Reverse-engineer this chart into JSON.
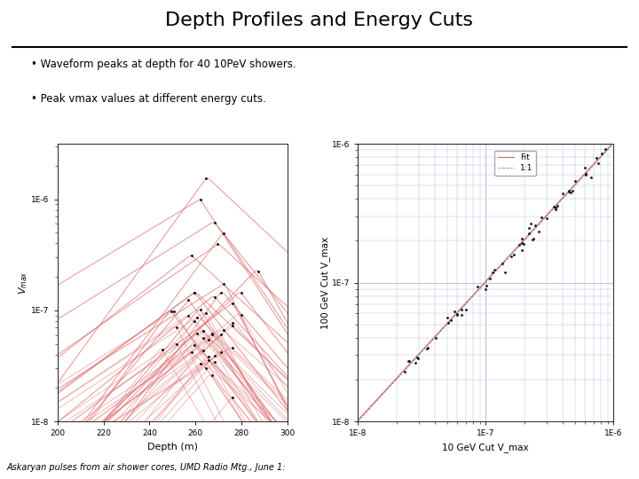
{
  "title": "Depth Profiles and Energy Cuts",
  "bullet1": "• Waveform peaks at depth for 40 10PeV showers.",
  "bullet2": "• Peak vmax values at different energy cuts.",
  "footer": "Askaryan pulses from air shower cores, UMD Radio Mtg., June 1:",
  "left_plot": {
    "xlabel": "Depth (m)",
    "ylabel": "V_max",
    "xmin": 200,
    "xmax": 300,
    "xticks": [
      200,
      220,
      240,
      260,
      280,
      300
    ],
    "ylim_log_min": -8,
    "ylim_log_max": -5.5,
    "n_showers": 40
  },
  "right_plot": {
    "xlabel": "10 GeV Cut V_max",
    "ylabel": "100 GeV Cut V_max",
    "xlim_min": 1e-08,
    "xlim_max": 1e-06,
    "ylim_min": 1e-08,
    "ylim_max": 1e-06,
    "legend_fit": "Fit",
    "legend_1to1": "1:1",
    "n_points": 60
  },
  "bg_color": "#ffffff",
  "line_color_left": "#dd6666",
  "dot_color_left": "#111111",
  "scatter_color_right": "#111111",
  "fit_color_right": "#cc6666",
  "line1_color_right": "#888888",
  "grid_color": "#aabbdd"
}
